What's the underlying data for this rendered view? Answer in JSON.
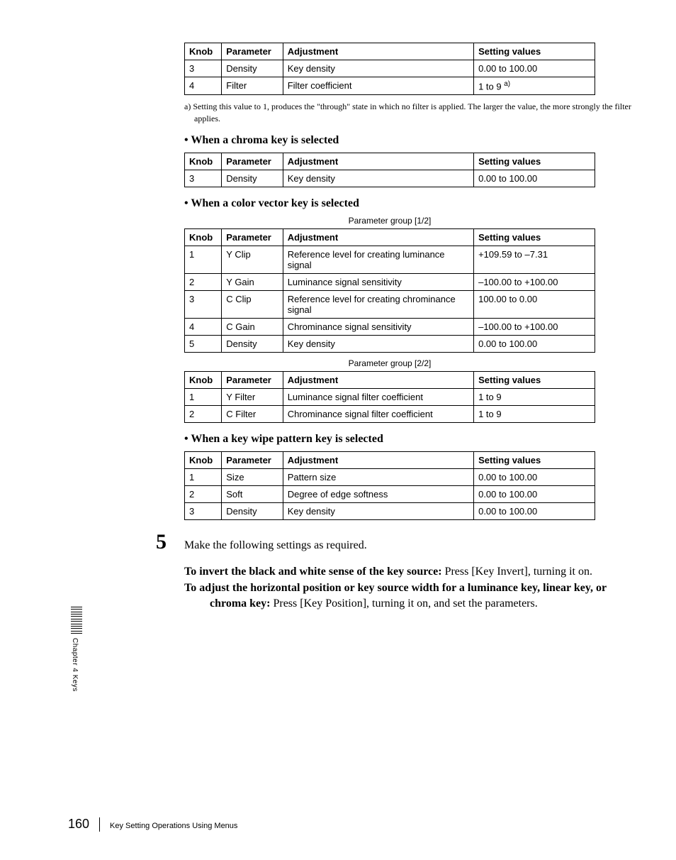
{
  "table1": {
    "headers": [
      "Knob",
      "Parameter",
      "Adjustment",
      "Setting values"
    ],
    "rows": [
      [
        "3",
        "Density",
        "Key density",
        "0.00 to 100.00"
      ],
      [
        "4",
        "Filter",
        "Filter coefficient",
        "1 to 9"
      ]
    ],
    "sup_cell": "a)"
  },
  "footnote_a": "a) Setting this value to 1, produces the \"through\" state in which no filter is applied. The larger the value, the more strongly the filter applies.",
  "heading_chroma": "When a chroma key is selected",
  "table2": {
    "headers": [
      "Knob",
      "Parameter",
      "Adjustment",
      "Setting values"
    ],
    "rows": [
      [
        "3",
        "Density",
        "Key density",
        "0.00 to 100.00"
      ]
    ]
  },
  "heading_colorvec": "When a color vector key is selected",
  "caption_1_2": "Parameter group [1/2]",
  "table3": {
    "headers": [
      "Knob",
      "Parameter",
      "Adjustment",
      "Setting values"
    ],
    "rows": [
      [
        "1",
        "Y Clip",
        "Reference level for creating luminance signal",
        "+109.59 to –7.31"
      ],
      [
        "2",
        "Y Gain",
        "Luminance signal sensitivity",
        "–100.00 to +100.00"
      ],
      [
        "3",
        "C Clip",
        "Reference level for creating chrominance signal",
        "100.00 to 0.00"
      ],
      [
        "4",
        "C Gain",
        "Chrominance signal sensitivity",
        "–100.00 to +100.00"
      ],
      [
        "5",
        "Density",
        "Key density",
        "0.00 to 100.00"
      ]
    ]
  },
  "caption_2_2": "Parameter group [2/2]",
  "table4": {
    "headers": [
      "Knob",
      "Parameter",
      "Adjustment",
      "Setting values"
    ],
    "rows": [
      [
        "1",
        "Y Filter",
        "Luminance signal filter coefficient",
        "1 to 9"
      ],
      [
        "2",
        "C Filter",
        "Chrominance signal filter coefficient",
        "1 to 9"
      ]
    ]
  },
  "heading_wipe": "When a key wipe pattern key is selected",
  "table5": {
    "headers": [
      "Knob",
      "Parameter",
      "Adjustment",
      "Setting values"
    ],
    "rows": [
      [
        "1",
        "Size",
        "Pattern size",
        "0.00 to 100.00"
      ],
      [
        "2",
        "Soft",
        "Degree of edge softness",
        "0.00 to 100.00"
      ],
      [
        "3",
        "Density",
        "Key density",
        "0.00 to 100.00"
      ]
    ]
  },
  "step5_num": "5",
  "step5_text": "Make the following settings as required.",
  "invert_bold": "To invert the black and white sense of the key source: ",
  "invert_rest": "Press [Key Invert], turning it on.",
  "adjust_bold": "To adjust the horizontal position or key source width for a luminance key, linear key, or chroma key: ",
  "adjust_rest": "Press [Key Position], turning it on, and set the parameters.",
  "side_label": "Chapter 4  Keys",
  "page_number": "160",
  "footer_text": "Key Setting Operations Using Menus"
}
